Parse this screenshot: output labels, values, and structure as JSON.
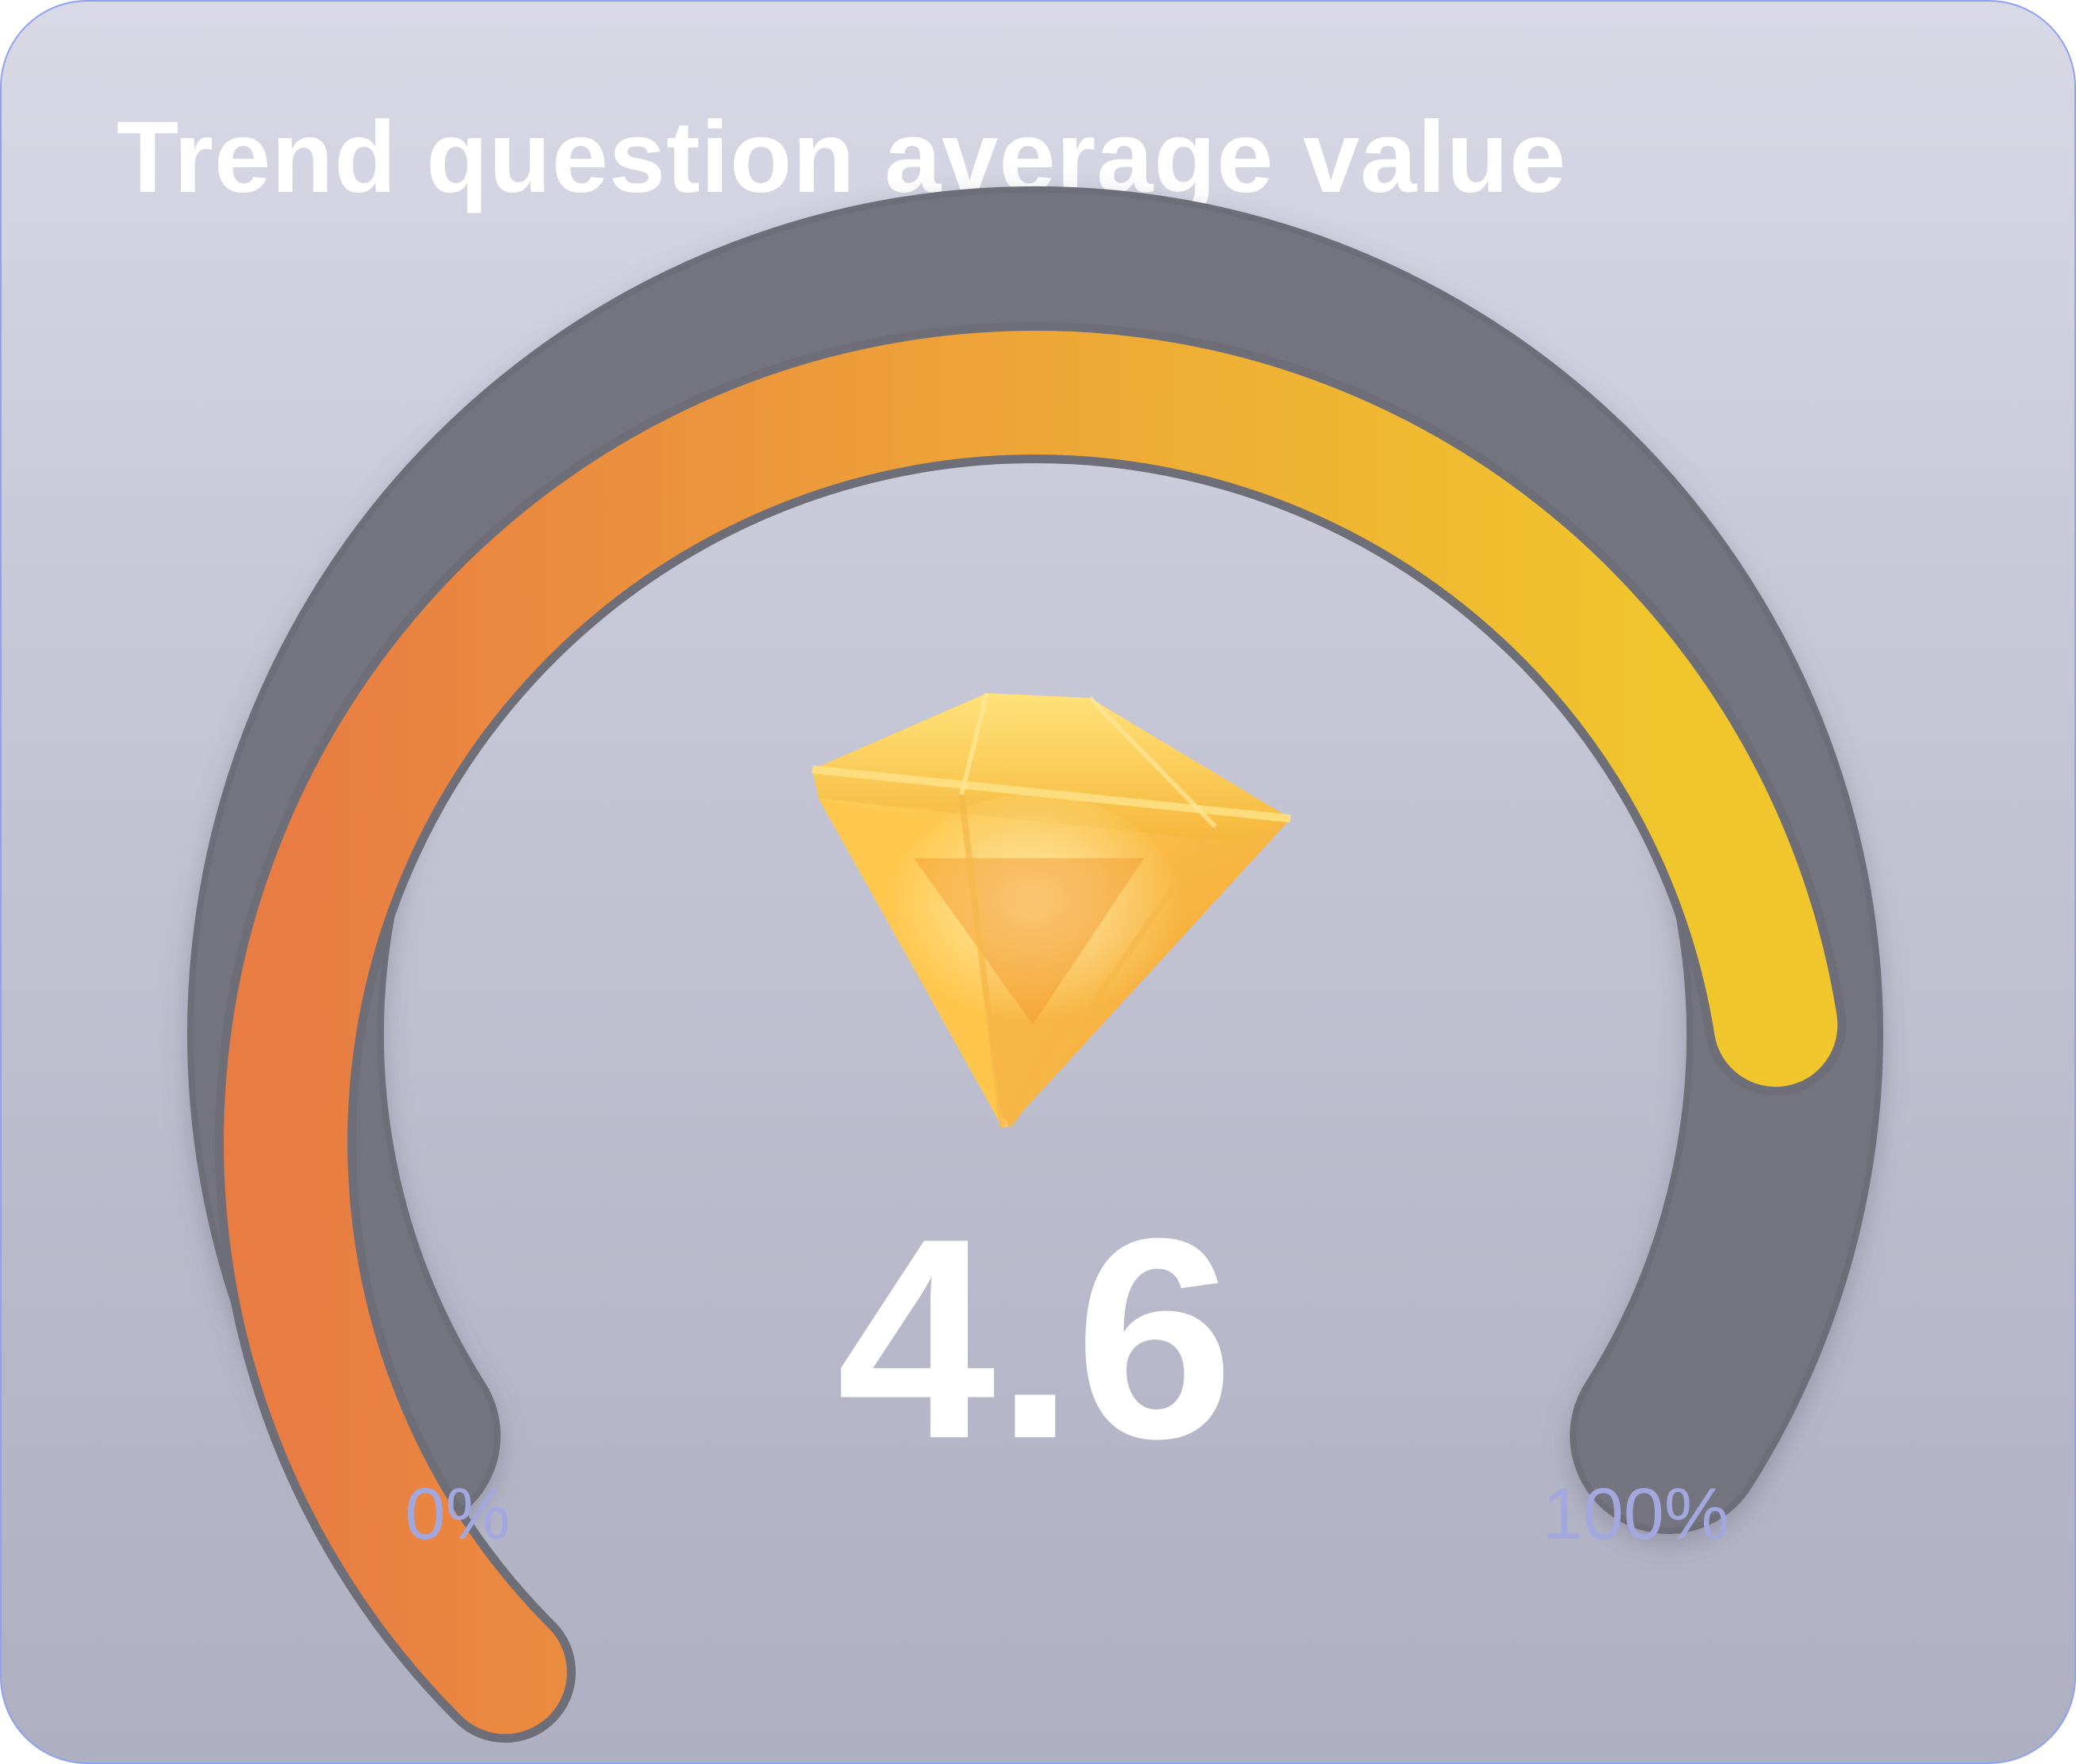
{
  "widget": {
    "title": "Trend question average value"
  },
  "gauge": {
    "value_label": "4.6",
    "fill_fraction": 0.8,
    "min_label": "0%",
    "max_label": "100%",
    "icon": "diamond-icon",
    "colors": {
      "fill_start": "#e87c43",
      "fill_mid": "#eea438",
      "fill_end": "#f0c62c",
      "track": "#6e6e79",
      "tick_label": "#a2a8dd",
      "value_text": "#ffffff"
    }
  }
}
